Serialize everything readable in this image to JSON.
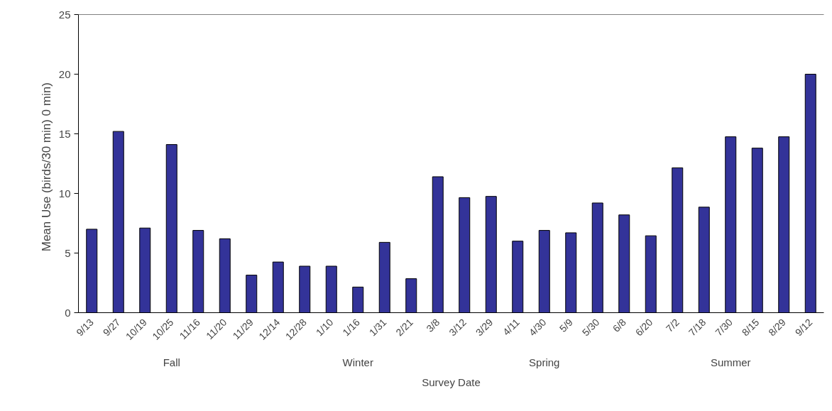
{
  "chart_data": {
    "type": "bar",
    "xlabel": "Survey Date",
    "ylabel": "Mean Use (birds/30 min)   0 min)",
    "categories": [
      "9/13",
      "9/27",
      "10/19",
      "10/25",
      "11/16",
      "11/20",
      "11/29",
      "12/14",
      "12/28",
      "1/10",
      "1/16",
      "1/31",
      "2/21",
      "3/8",
      "3/12",
      "3/29",
      "4/11",
      "4/30",
      "5/9",
      "5/30",
      "6/8",
      "6/20",
      "7/2",
      "7/18",
      "7/30",
      "8/15",
      "8/29",
      "9/12"
    ],
    "values": [
      7.0,
      15.2,
      7.1,
      14.1,
      6.9,
      6.2,
      3.15,
      4.25,
      3.9,
      3.9,
      2.15,
      5.9,
      2.85,
      11.4,
      9.65,
      9.75,
      6.0,
      6.9,
      6.7,
      9.2,
      8.2,
      6.45,
      12.15,
      8.85,
      14.75,
      13.8,
      14.75,
      20.0
    ],
    "color": "#333399",
    "ylim": [
      0,
      25
    ],
    "yticks": [
      0,
      5,
      10,
      15,
      20,
      25
    ],
    "grid": false,
    "annotations": [
      "Fall",
      "Winter",
      "Spring",
      "Summer"
    ]
  }
}
